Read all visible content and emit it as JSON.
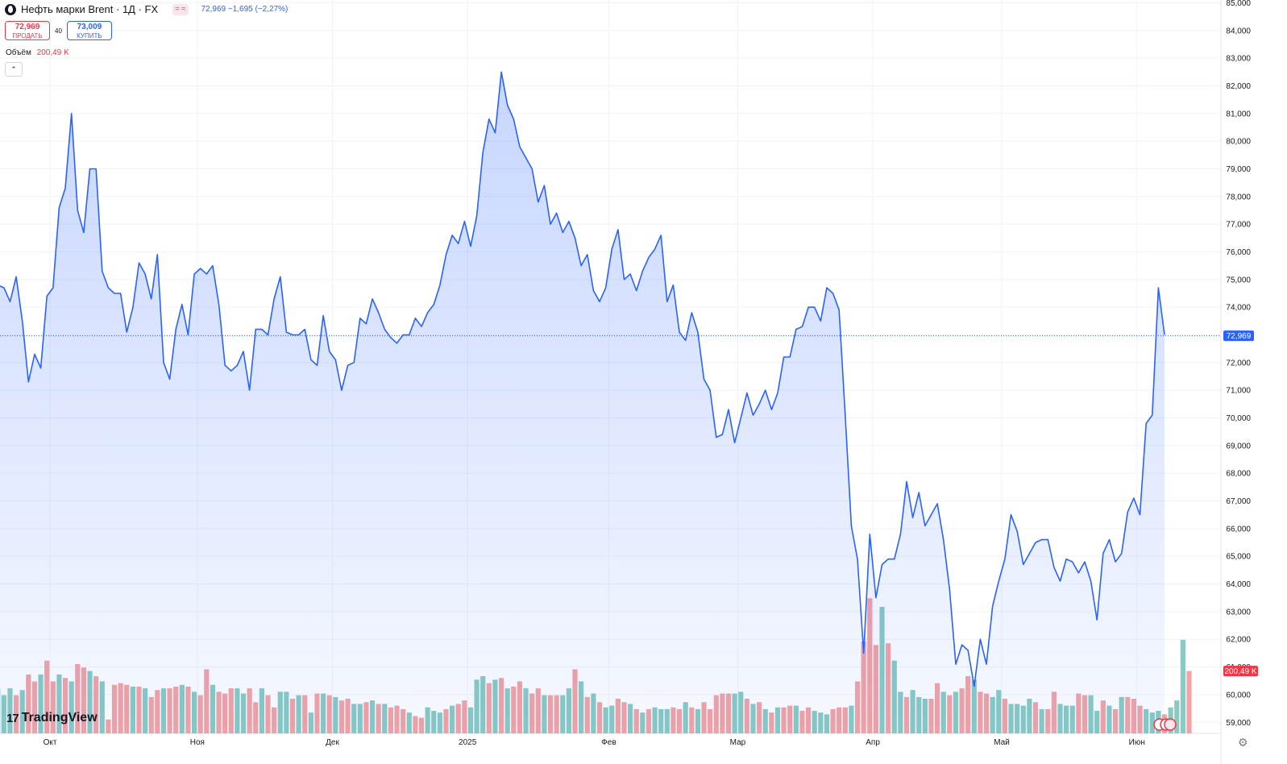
{
  "header": {
    "symbol": "Нефть марки Brent · 1Д · FX",
    "symbol_icon": "oil-drop-icon",
    "badges": [
      "=",
      "≈"
    ],
    "quote": "72,969 −1,695 (−2,27%)"
  },
  "trade": {
    "sell_price": "72,969",
    "sell_label": "ПРОДАТЬ",
    "spread": "40",
    "buy_price": "73,009",
    "buy_label": "КУПИТЬ"
  },
  "volume_legend": {
    "label": "Объём",
    "value": "200,49 K"
  },
  "collapse_icon": "chevron-up-icon",
  "logo": "TradingView",
  "settings_icon": "gear-icon",
  "colors": {
    "line": "#2962ff",
    "up_volume": "#89cbc3",
    "down_volume": "#f4a3a4",
    "last_price_badge": "#2962ff",
    "volume_badge": "#f23645"
  },
  "chart_data": {
    "type": "area",
    "title": "",
    "price_axis": {
      "ylim": [
        58.6,
        85.1
      ],
      "ticks": [
        "59,000",
        "60,000",
        "61,000",
        "62,000",
        "63,000",
        "64,000",
        "65,000",
        "66,000",
        "67,000",
        "68,000",
        "69,000",
        "70,000",
        "71,000",
        "72,000",
        "73,000",
        "74,000",
        "75,000",
        "76,000",
        "77,000",
        "78,000",
        "79,000",
        "80,000",
        "81,000",
        "82,000",
        "83,000",
        "84,000",
        "85,000"
      ]
    },
    "time_axis": {
      "labels": [
        "Окт",
        "Ноя",
        "Дек",
        "2025",
        "Фев",
        "Мар",
        "Апр",
        "Май",
        "Июн"
      ],
      "label_positions": [
        8.5,
        32.5,
        54.5,
        76.5,
        99.5,
        120.5,
        142.5,
        163.5,
        185.5
      ]
    },
    "last_price": {
      "value": 72.969,
      "label": "72,969"
    },
    "last_volume": {
      "label": "200,49 K",
      "relative_level": 0.36
    },
    "close": [
      74.8,
      74.7,
      74.2,
      75.1,
      73.5,
      71.3,
      72.3,
      71.8,
      74.4,
      74.7,
      77.6,
      78.3,
      81.0,
      77.5,
      76.7,
      79.0,
      79.0,
      75.3,
      74.7,
      74.5,
      74.5,
      73.1,
      74.0,
      75.6,
      75.2,
      74.3,
      75.9,
      72.0,
      71.4,
      73.2,
      74.1,
      73.0,
      75.2,
      75.4,
      75.2,
      75.5,
      74.1,
      71.9,
      71.7,
      71.9,
      72.4,
      71.0,
      73.2,
      73.2,
      73.0,
      74.3,
      75.1,
      73.1,
      73.0,
      73.0,
      73.2,
      72.1,
      71.9,
      73.7,
      72.4,
      72.1,
      71.0,
      71.9,
      72.0,
      73.6,
      73.4,
      74.3,
      73.8,
      73.2,
      72.9,
      72.7,
      73.0,
      73.0,
      73.6,
      73.3,
      73.8,
      74.1,
      74.8,
      75.9,
      76.6,
      76.3,
      77.1,
      76.2,
      77.3,
      79.6,
      80.8,
      80.3,
      82.5,
      81.3,
      80.8,
      79.8,
      79.4,
      79.0,
      77.8,
      78.4,
      77.0,
      77.4,
      76.7,
      77.1,
      76.5,
      75.5,
      75.9,
      74.6,
      74.2,
      74.7,
      76.1,
      76.8,
      75.0,
      75.2,
      74.6,
      75.3,
      75.8,
      76.1,
      76.6,
      74.2,
      74.8,
      73.1,
      72.8,
      73.8,
      73.1,
      71.4,
      71.0,
      69.3,
      69.4,
      70.3,
      69.1,
      70.0,
      70.9,
      70.1,
      70.5,
      71.0,
      70.3,
      70.9,
      72.2,
      72.2,
      73.2,
      73.3,
      74.0,
      74.0,
      73.5,
      74.7,
      74.5,
      73.9,
      70.1,
      66.1,
      64.9,
      61.5,
      65.8,
      63.5,
      64.7,
      64.9,
      64.9,
      65.8,
      67.7,
      66.4,
      67.3,
      66.1,
      66.5,
      66.9,
      65.6,
      63.8,
      61.1,
      61.8,
      61.6,
      60.3,
      62.0,
      61.1,
      63.2,
      64.1,
      64.9,
      66.5,
      65.9,
      64.7,
      65.1,
      65.5,
      65.6,
      65.6,
      64.6,
      64.1,
      64.9,
      64.8,
      64.4,
      64.8,
      64.1,
      62.7,
      65.1,
      65.6,
      64.8,
      65.1,
      66.6,
      67.1,
      66.5,
      69.8,
      70.1,
      74.7,
      73.0
    ],
    "volume": [
      {
        "v": 0.26,
        "u": true
      },
      {
        "v": 0.22,
        "u": true
      },
      {
        "v": 0.26,
        "u": true
      },
      {
        "v": 0.22,
        "u": false
      },
      {
        "v": 0.25,
        "u": true
      },
      {
        "v": 0.34,
        "u": false
      },
      {
        "v": 0.3,
        "u": false
      },
      {
        "v": 0.34,
        "u": true
      },
      {
        "v": 0.42,
        "u": false
      },
      {
        "v": 0.3,
        "u": false
      },
      {
        "v": 0.34,
        "u": true
      },
      {
        "v": 0.32,
        "u": false
      },
      {
        "v": 0.3,
        "u": true
      },
      {
        "v": 0.4,
        "u": false
      },
      {
        "v": 0.38,
        "u": false
      },
      {
        "v": 0.36,
        "u": true
      },
      {
        "v": 0.33,
        "u": false
      },
      {
        "v": 0.3,
        "u": true
      },
      {
        "v": 0.08,
        "u": false
      },
      {
        "v": 0.28,
        "u": false
      },
      {
        "v": 0.29,
        "u": false
      },
      {
        "v": 0.28,
        "u": false
      },
      {
        "v": 0.27,
        "u": true
      },
      {
        "v": 0.27,
        "u": false
      },
      {
        "v": 0.26,
        "u": true
      },
      {
        "v": 0.21,
        "u": false
      },
      {
        "v": 0.25,
        "u": false
      },
      {
        "v": 0.26,
        "u": true
      },
      {
        "v": 0.26,
        "u": false
      },
      {
        "v": 0.27,
        "u": false
      },
      {
        "v": 0.28,
        "u": true
      },
      {
        "v": 0.27,
        "u": false
      },
      {
        "v": 0.24,
        "u": true
      },
      {
        "v": 0.22,
        "u": false
      },
      {
        "v": 0.37,
        "u": false
      },
      {
        "v": 0.28,
        "u": true
      },
      {
        "v": 0.24,
        "u": false
      },
      {
        "v": 0.23,
        "u": false
      },
      {
        "v": 0.26,
        "u": false
      },
      {
        "v": 0.26,
        "u": true
      },
      {
        "v": 0.23,
        "u": true
      },
      {
        "v": 0.26,
        "u": false
      },
      {
        "v": 0.18,
        "u": false
      },
      {
        "v": 0.26,
        "u": true
      },
      {
        "v": 0.22,
        "u": false
      },
      {
        "v": 0.15,
        "u": false
      },
      {
        "v": 0.24,
        "u": true
      },
      {
        "v": 0.24,
        "u": true
      },
      {
        "v": 0.2,
        "u": false
      },
      {
        "v": 0.22,
        "u": true
      },
      {
        "v": 0.22,
        "u": false
      },
      {
        "v": 0.12,
        "u": true
      },
      {
        "v": 0.23,
        "u": false
      },
      {
        "v": 0.23,
        "u": true
      },
      {
        "v": 0.22,
        "u": false
      },
      {
        "v": 0.21,
        "u": true
      },
      {
        "v": 0.19,
        "u": false
      },
      {
        "v": 0.2,
        "u": false
      },
      {
        "v": 0.17,
        "u": true
      },
      {
        "v": 0.17,
        "u": true
      },
      {
        "v": 0.18,
        "u": false
      },
      {
        "v": 0.19,
        "u": true
      },
      {
        "v": 0.17,
        "u": false
      },
      {
        "v": 0.17,
        "u": true
      },
      {
        "v": 0.15,
        "u": false
      },
      {
        "v": 0.16,
        "u": false
      },
      {
        "v": 0.14,
        "u": false
      },
      {
        "v": 0.12,
        "u": true
      },
      {
        "v": 0.1,
        "u": false
      },
      {
        "v": 0.09,
        "u": false
      },
      {
        "v": 0.15,
        "u": true
      },
      {
        "v": 0.13,
        "u": true
      },
      {
        "v": 0.12,
        "u": true
      },
      {
        "v": 0.14,
        "u": false
      },
      {
        "v": 0.16,
        "u": true
      },
      {
        "v": 0.17,
        "u": false
      },
      {
        "v": 0.19,
        "u": false
      },
      {
        "v": 0.15,
        "u": true
      },
      {
        "v": 0.31,
        "u": true
      },
      {
        "v": 0.33,
        "u": true
      },
      {
        "v": 0.29,
        "u": false
      },
      {
        "v": 0.31,
        "u": true
      },
      {
        "v": 0.32,
        "u": false
      },
      {
        "v": 0.26,
        "u": true
      },
      {
        "v": 0.27,
        "u": false
      },
      {
        "v": 0.3,
        "u": false
      },
      {
        "v": 0.26,
        "u": true
      },
      {
        "v": 0.23,
        "u": false
      },
      {
        "v": 0.26,
        "u": false
      },
      {
        "v": 0.22,
        "u": true
      },
      {
        "v": 0.22,
        "u": false
      },
      {
        "v": 0.22,
        "u": false
      },
      {
        "v": 0.22,
        "u": true
      },
      {
        "v": 0.26,
        "u": true
      },
      {
        "v": 0.37,
        "u": false
      },
      {
        "v": 0.3,
        "u": true
      },
      {
        "v": 0.21,
        "u": false
      },
      {
        "v": 0.23,
        "u": true
      },
      {
        "v": 0.18,
        "u": false
      },
      {
        "v": 0.15,
        "u": true
      },
      {
        "v": 0.16,
        "u": true
      },
      {
        "v": 0.2,
        "u": false
      },
      {
        "v": 0.18,
        "u": false
      },
      {
        "v": 0.17,
        "u": true
      },
      {
        "v": 0.14,
        "u": false
      },
      {
        "v": 0.12,
        "u": true
      },
      {
        "v": 0.14,
        "u": false
      },
      {
        "v": 0.15,
        "u": true
      },
      {
        "v": 0.14,
        "u": true
      },
      {
        "v": 0.14,
        "u": true
      },
      {
        "v": 0.15,
        "u": false
      },
      {
        "v": 0.14,
        "u": false
      },
      {
        "v": 0.18,
        "u": true
      },
      {
        "v": 0.15,
        "u": false
      },
      {
        "v": 0.14,
        "u": true
      },
      {
        "v": 0.18,
        "u": false
      },
      {
        "v": 0.14,
        "u": false
      },
      {
        "v": 0.22,
        "u": false
      },
      {
        "v": 0.23,
        "u": false
      },
      {
        "v": 0.23,
        "u": false
      },
      {
        "v": 0.23,
        "u": true
      },
      {
        "v": 0.24,
        "u": true
      },
      {
        "v": 0.2,
        "u": false
      },
      {
        "v": 0.17,
        "u": true
      },
      {
        "v": 0.18,
        "u": false
      },
      {
        "v": 0.14,
        "u": true
      },
      {
        "v": 0.12,
        "u": false
      },
      {
        "v": 0.15,
        "u": true
      },
      {
        "v": 0.15,
        "u": false
      },
      {
        "v": 0.16,
        "u": false
      },
      {
        "v": 0.16,
        "u": true
      },
      {
        "v": 0.13,
        "u": false
      },
      {
        "v": 0.15,
        "u": false
      },
      {
        "v": 0.13,
        "u": true
      },
      {
        "v": 0.12,
        "u": true
      },
      {
        "v": 0.11,
        "u": true
      },
      {
        "v": 0.14,
        "u": false
      },
      {
        "v": 0.15,
        "u": false
      },
      {
        "v": 0.15,
        "u": false
      },
      {
        "v": 0.16,
        "u": true
      },
      {
        "v": 0.3,
        "u": false
      },
      {
        "v": 0.53,
        "u": false
      },
      {
        "v": 0.78,
        "u": false
      },
      {
        "v": 0.51,
        "u": false
      },
      {
        "v": 0.73,
        "u": true
      },
      {
        "v": 0.52,
        "u": false
      },
      {
        "v": 0.42,
        "u": true
      },
      {
        "v": 0.24,
        "u": true
      },
      {
        "v": 0.21,
        "u": false
      },
      {
        "v": 0.25,
        "u": true
      },
      {
        "v": 0.21,
        "u": true
      },
      {
        "v": 0.2,
        "u": true
      },
      {
        "v": 0.2,
        "u": false
      },
      {
        "v": 0.29,
        "u": false
      },
      {
        "v": 0.24,
        "u": true
      },
      {
        "v": 0.22,
        "u": false
      },
      {
        "v": 0.24,
        "u": true
      },
      {
        "v": 0.26,
        "u": false
      },
      {
        "v": 0.33,
        "u": false
      },
      {
        "v": 0.31,
        "u": true
      },
      {
        "v": 0.24,
        "u": false
      },
      {
        "v": 0.23,
        "u": false
      },
      {
        "v": 0.21,
        "u": true
      },
      {
        "v": 0.25,
        "u": true
      },
      {
        "v": 0.2,
        "u": false
      },
      {
        "v": 0.17,
        "u": true
      },
      {
        "v": 0.17,
        "u": true
      },
      {
        "v": 0.16,
        "u": true
      },
      {
        "v": 0.2,
        "u": true
      },
      {
        "v": 0.18,
        "u": false
      },
      {
        "v": 0.14,
        "u": true
      },
      {
        "v": 0.14,
        "u": false
      },
      {
        "v": 0.24,
        "u": false
      },
      {
        "v": 0.17,
        "u": true
      },
      {
        "v": 0.16,
        "u": true
      },
      {
        "v": 0.16,
        "u": true
      },
      {
        "v": 0.23,
        "u": false
      },
      {
        "v": 0.22,
        "u": false
      },
      {
        "v": 0.22,
        "u": true
      },
      {
        "v": 0.13,
        "u": true
      },
      {
        "v": 0.19,
        "u": false
      },
      {
        "v": 0.16,
        "u": true
      },
      {
        "v": 0.14,
        "u": false
      },
      {
        "v": 0.21,
        "u": true
      },
      {
        "v": 0.21,
        "u": false
      },
      {
        "v": 0.2,
        "u": false
      },
      {
        "v": 0.16,
        "u": false
      },
      {
        "v": 0.14,
        "u": true
      },
      {
        "v": 0.12,
        "u": true
      },
      {
        "v": 0.13,
        "u": true
      },
      {
        "v": 0.11,
        "u": false
      },
      {
        "v": 0.15,
        "u": true
      },
      {
        "v": 0.19,
        "u": true
      },
      {
        "v": 0.54,
        "u": true
      },
      {
        "v": 0.36,
        "u": false
      }
    ]
  }
}
